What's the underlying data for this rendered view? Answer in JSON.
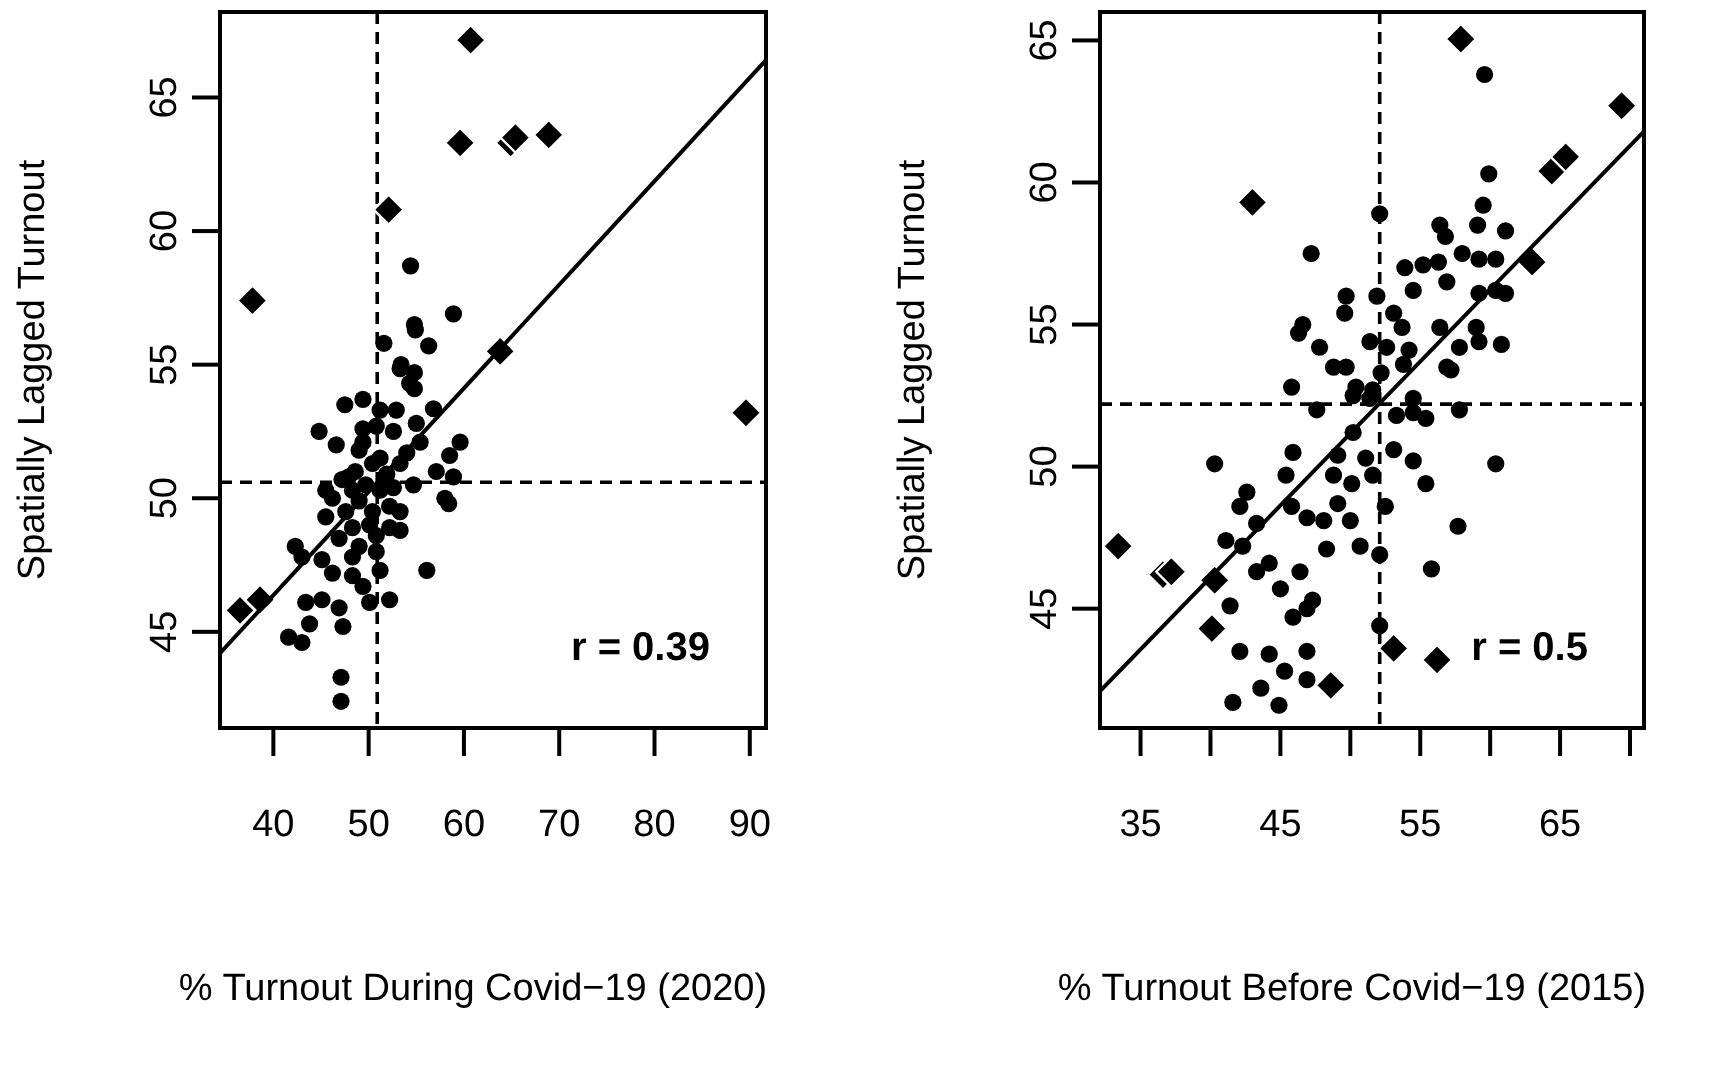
{
  "chart_data": [
    {
      "type": "scatter",
      "xlabel": "% Turnout During Covid−19 (2020)",
      "ylabel": "Spatially Lagged Turnout",
      "xlim": [
        34.4,
        91.7
      ],
      "ylim": [
        41.4,
        68.2
      ],
      "xticks": [
        40,
        50,
        60,
        70,
        80,
        90
      ],
      "yticks": [
        45,
        50,
        55,
        60,
        65
      ],
      "ref_lines": [
        {
          "axis": "x",
          "value": 50.9,
          "line_style": "dashed"
        },
        {
          "axis": "y",
          "value": 50.6,
          "line_style": "dashed"
        }
      ],
      "annotations": [
        "r = 0.39"
      ],
      "series": [
        {
          "type": "scatter",
          "marker": "circle",
          "color": "#000000",
          "x": [
            54.4,
            58.9,
            54.8,
            54.9,
            56.3,
            51.6,
            53.4,
            54.8,
            54.3,
            53.3,
            54.8,
            47.5,
            49.4,
            51.2,
            52.9,
            56.8,
            44.8,
            46.6,
            49.4,
            50.8,
            52.6,
            55.4,
            59.6,
            58.5,
            49.0,
            51.2,
            53.3,
            57.1,
            58.9,
            45.5,
            47.9,
            49.7,
            51.2,
            52.6,
            54.7,
            49.0,
            47.6,
            45.5,
            50.4,
            52.2,
            58.4,
            58.0,
            48.3,
            50.1,
            53.3,
            42.3,
            46.9,
            49.0,
            50.8,
            43.0,
            45.1,
            48.3,
            46.2,
            51.2,
            56.1,
            48.3,
            49.4,
            43.4,
            45.1,
            46.9,
            50.1,
            52.2,
            43.8,
            47.3,
            41.6,
            43.0,
            47.1,
            47.1,
            50.4,
            48.6,
            47.2,
            51.9,
            49.4,
            54.0,
            55.0,
            46.2,
            50.8,
            48.3,
            52.2,
            53.3
          ],
          "values": [
            58.7,
            56.9,
            56.5,
            56.3,
            55.7,
            55.8,
            55.0,
            54.7,
            54.3,
            54.85,
            54.1,
            53.5,
            53.7,
            53.3,
            53.3,
            53.35,
            52.5,
            52.0,
            52.6,
            52.7,
            52.5,
            52.1,
            52.1,
            51.6,
            51.8,
            51.5,
            51.3,
            51.0,
            50.8,
            50.3,
            50.8,
            50.5,
            50.3,
            50.4,
            50.5,
            49.9,
            49.5,
            49.3,
            49.5,
            49.7,
            49.8,
            50.0,
            48.9,
            49.0,
            48.8,
            48.2,
            48.5,
            48.2,
            48.0,
            47.8,
            47.7,
            47.8,
            47.2,
            47.3,
            47.3,
            47.1,
            46.7,
            46.1,
            46.2,
            45.9,
            46.1,
            46.2,
            45.3,
            45.2,
            44.8,
            44.6,
            43.3,
            42.4,
            51.3,
            51.0,
            50.7,
            50.9,
            52.1,
            51.7,
            52.8,
            50.0,
            48.6,
            50.3,
            48.9,
            49.5
          ]
        },
        {
          "type": "scatter",
          "marker": "diamond",
          "color": "#000000",
          "x": [
            60.7,
            59.6,
            64.9,
            65.4,
            68.9,
            52.1,
            37.8,
            63.8,
            89.6,
            36.5,
            38.6
          ],
          "values": [
            67.15,
            63.3,
            63.3,
            63.5,
            63.6,
            60.8,
            57.4,
            55.5,
            53.2,
            45.8,
            46.2
          ]
        },
        {
          "type": "line",
          "marker": "none",
          "color": "#000000",
          "line_style": "solid",
          "x": [
            34.4,
            91.7
          ],
          "values": [
            44.2,
            66.4
          ]
        }
      ]
    },
    {
      "type": "scatter",
      "xlabel": "% Turnout Before Covid−19 (2015)",
      "ylabel": "Spatially Lagged Turnout",
      "xlim": [
        32.1,
        71.0
      ],
      "ylim": [
        40.8,
        66.0
      ],
      "xticks": [
        35,
        {
          "value": 40,
          "label": null
        },
        45,
        {
          "value": 50,
          "label": null
        },
        55,
        {
          "value": 60,
          "label": null
        },
        65,
        {
          "value": 70,
          "label": null
        }
      ],
      "yticks": [
        45,
        50,
        55,
        60,
        65
      ],
      "ref_lines": [
        {
          "axis": "x",
          "value": 52.1,
          "line_style": "dashed"
        },
        {
          "axis": "y",
          "value": 52.2,
          "line_style": "dashed"
        }
      ],
      "annotations": [
        "r = 0.5"
      ],
      "series": [
        {
          "type": "scatter",
          "marker": "circle",
          "color": "#000000",
          "x": [
            59.6,
            59.9,
            59.5,
            52.1,
            56.4,
            59.1,
            61.1,
            56.8,
            47.2,
            58.0,
            60.4,
            53.9,
            55.2,
            56.3,
            59.2,
            56.9,
            54.5,
            49.7,
            51.9,
            59.2,
            60.4,
            61.1,
            49.6,
            53.1,
            46.6,
            46.3,
            53.7,
            56.4,
            59.0,
            51.4,
            52.6,
            54.2,
            47.8,
            57.8,
            59.2,
            60.8,
            48.8,
            49.7,
            56.9,
            45.8,
            50.4,
            51.6,
            54.5,
            52.2,
            53.8,
            57.2,
            50.2,
            51.4,
            47.6,
            53.3,
            54.5,
            55.4,
            57.8,
            50.2,
            53.1,
            54.5,
            51.1,
            49.1,
            45.9,
            40.3,
            45.4,
            48.8,
            50.1,
            51.6,
            55.4,
            60.4,
            42.6,
            42.1,
            45.8,
            52.5,
            49.1,
            46.9,
            48.1,
            50.0,
            43.3,
            57.7,
            41.1,
            42.3,
            48.3,
            50.7,
            52.1,
            44.2,
            43.3,
            46.4,
            55.8,
            45.0,
            47.3,
            41.4,
            46.9,
            45.9,
            52.1,
            42.1,
            44.2,
            46.9,
            45.3,
            46.9,
            43.6,
            41.6,
            44.9
          ],
          "values": [
            63.8,
            60.3,
            59.2,
            58.9,
            58.5,
            58.5,
            58.3,
            58.1,
            57.5,
            57.5,
            57.3,
            57.0,
            57.1,
            57.2,
            57.3,
            56.5,
            56.2,
            56.0,
            56.0,
            56.1,
            56.2,
            56.1,
            55.4,
            55.4,
            55.0,
            54.7,
            54.9,
            54.9,
            54.9,
            54.4,
            54.2,
            54.1,
            54.2,
            54.2,
            54.4,
            54.3,
            53.5,
            53.5,
            53.5,
            52.8,
            52.8,
            52.7,
            52.4,
            53.3,
            53.6,
            53.4,
            52.5,
            52.4,
            52.0,
            51.8,
            51.9,
            51.7,
            52.0,
            51.2,
            50.6,
            50.2,
            50.3,
            50.4,
            50.5,
            50.1,
            49.7,
            49.7,
            49.4,
            49.7,
            49.4,
            50.1,
            49.1,
            48.6,
            48.6,
            48.6,
            48.7,
            48.2,
            48.1,
            48.1,
            48.0,
            47.9,
            47.4,
            47.2,
            47.1,
            47.2,
            46.9,
            46.6,
            46.3,
            46.3,
            46.4,
            45.7,
            45.3,
            45.1,
            45.0,
            44.7,
            44.4,
            43.5,
            43.4,
            43.5,
            42.8,
            42.5,
            42.2,
            41.7,
            41.6
          ]
        },
        {
          "type": "scatter",
          "marker": "diamond",
          "color": "#000000",
          "x": [
            57.9,
            43.0,
            69.4,
            64.4,
            65.4,
            63.0,
            33.4,
            36.6,
            37.2,
            40.3,
            40.1,
            48.6,
            53.1,
            56.2
          ],
          "values": [
            65.05,
            59.3,
            62.7,
            60.4,
            60.9,
            57.2,
            47.2,
            46.2,
            46.3,
            46.0,
            44.3,
            42.3,
            43.6,
            43.2
          ]
        },
        {
          "type": "line",
          "marker": "none",
          "color": "#000000",
          "line_style": "solid",
          "x": [
            32.1,
            71.0
          ],
          "values": [
            42.1,
            61.8
          ]
        }
      ]
    }
  ]
}
